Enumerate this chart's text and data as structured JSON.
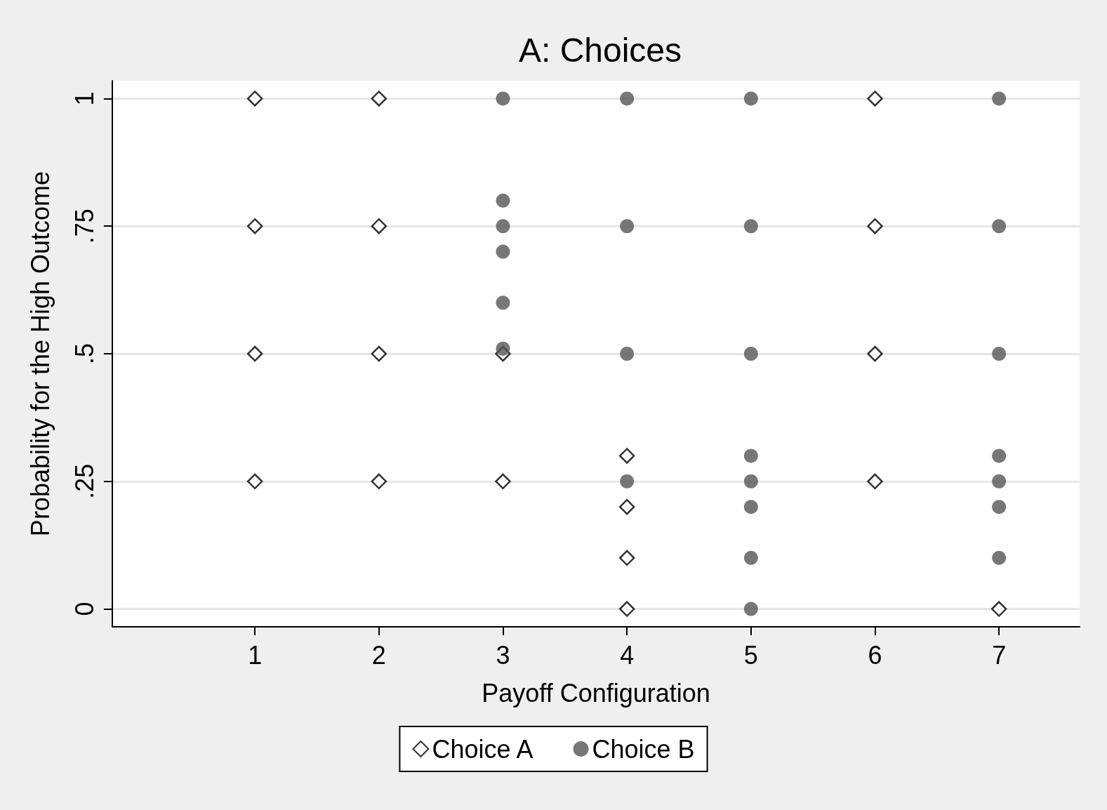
{
  "chart_data": {
    "type": "scatter",
    "title": "A: Choices",
    "xlabel": "Payoff Configuration",
    "ylabel": "Probability for the High Outcome",
    "xlim": [
      -0.15,
      7.65
    ],
    "xticks": [
      1,
      2,
      3,
      4,
      5,
      6,
      7
    ],
    "ylim": [
      -0.035,
      1.035
    ],
    "yticks": [
      {
        "value": 0,
        "label": "0"
      },
      {
        "value": 0.25,
        "label": ".25"
      },
      {
        "value": 0.5,
        "label": ".5"
      },
      {
        "value": 0.75,
        "label": ".75"
      },
      {
        "value": 1,
        "label": "1"
      }
    ],
    "grid": "y",
    "legend": "bottom",
    "series": [
      {
        "name": "Choice A",
        "color": "#000000",
        "marker": "diamond",
        "x": [
          1,
          1,
          1,
          1,
          2,
          2,
          2,
          2,
          3,
          3,
          4,
          4,
          4,
          4,
          6,
          6,
          6,
          6,
          7
        ],
        "values": [
          1,
          0.75,
          0.5,
          0.25,
          1,
          0.75,
          0.5,
          0.25,
          0.5,
          0.25,
          0.3,
          0.2,
          0.1,
          0,
          1,
          0.75,
          0.5,
          0.25,
          0
        ]
      },
      {
        "name": "Choice B",
        "color": "#555555",
        "marker": "circle",
        "x": [
          3,
          3,
          3,
          3,
          3,
          3,
          4,
          4,
          4,
          4,
          5,
          5,
          5,
          5,
          5,
          5,
          5,
          5,
          7,
          7,
          7,
          7,
          7,
          7,
          7
        ],
        "values": [
          1,
          0.8,
          0.75,
          0.7,
          0.6,
          0.51,
          1,
          0.75,
          0.5,
          0.25,
          1,
          0.75,
          0.5,
          0.3,
          0.25,
          0.2,
          0.1,
          0,
          1,
          0.75,
          0.5,
          0.3,
          0.25,
          0.2,
          0.1
        ]
      }
    ]
  }
}
